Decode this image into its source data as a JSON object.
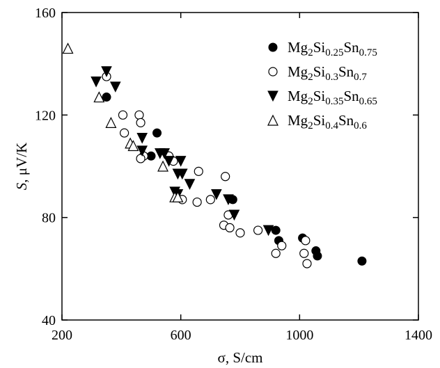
{
  "chart_data": {
    "type": "scatter",
    "xlabel": "σ, S/cm",
    "ylabel_italic": "S",
    "ylabel_rest": ", μV/K",
    "xlim": [
      200,
      1400
    ],
    "ylim": [
      40,
      160
    ],
    "xticks": [
      200,
      600,
      1000,
      1400
    ],
    "yticks": [
      40,
      80,
      120,
      160
    ],
    "xtick_labels": [
      "200",
      "600",
      "1000",
      "1400"
    ],
    "ytick_labels": [
      "40",
      "80",
      "120",
      "160"
    ],
    "grid": false,
    "legend_position": "top-right",
    "series": [
      {
        "name": "Mg2Si0.25Sn0.75",
        "legend_parts": [
          "Mg",
          "2",
          "Si",
          "0.25",
          "Sn",
          "0.75"
        ],
        "marker": "filled-circle",
        "color": "#000000",
        "points": [
          [
            350,
            127
          ],
          [
            520,
            113
          ],
          [
            500,
            104
          ],
          [
            775,
            87
          ],
          [
            920,
            75
          ],
          [
            930,
            71
          ],
          [
            1010,
            72
          ],
          [
            1055,
            67
          ],
          [
            1060,
            65
          ],
          [
            1210,
            63
          ]
        ]
      },
      {
        "name": "Mg2Si0.3Sn0.7",
        "legend_parts": [
          "Mg",
          "2",
          "Si",
          "0.3",
          "Sn",
          "0.7"
        ],
        "marker": "open-circle",
        "color": "#000000",
        "points": [
          [
            350,
            135
          ],
          [
            405,
            120
          ],
          [
            460,
            120
          ],
          [
            465,
            117
          ],
          [
            410,
            113
          ],
          [
            475,
            104
          ],
          [
            465,
            103
          ],
          [
            560,
            104
          ],
          [
            575,
            102
          ],
          [
            660,
            98
          ],
          [
            750,
            96
          ],
          [
            700,
            87
          ],
          [
            605,
            87
          ],
          [
            655,
            86
          ],
          [
            760,
            81
          ],
          [
            745,
            77
          ],
          [
            765,
            76
          ],
          [
            800,
            74
          ],
          [
            860,
            75
          ],
          [
            940,
            69
          ],
          [
            920,
            66
          ],
          [
            1020,
            71
          ],
          [
            1015,
            66
          ],
          [
            1025,
            62
          ]
        ]
      },
      {
        "name": "Mg2Si0.35Sn0.65",
        "legend_parts": [
          "Mg",
          "2",
          "Si",
          "0.35",
          "Sn",
          "0.65"
        ],
        "marker": "filled-triangle-down",
        "color": "#000000",
        "points": [
          [
            350,
            137
          ],
          [
            315,
            133
          ],
          [
            380,
            131
          ],
          [
            470,
            111
          ],
          [
            470,
            106
          ],
          [
            530,
            105
          ],
          [
            545,
            105
          ],
          [
            560,
            102
          ],
          [
            600,
            102
          ],
          [
            590,
            97
          ],
          [
            605,
            97
          ],
          [
            630,
            93
          ],
          [
            580,
            90
          ],
          [
            590,
            89
          ],
          [
            720,
            89
          ],
          [
            760,
            87
          ],
          [
            780,
            81
          ],
          [
            895,
            75
          ]
        ]
      },
      {
        "name": "Mg2Si0.4Sn0.6",
        "legend_parts": [
          "Mg",
          "2",
          "Si",
          "0.4",
          "Sn",
          "0.6"
        ],
        "marker": "open-triangle-up",
        "color": "#000000",
        "points": [
          [
            220,
            146
          ],
          [
            325,
            127
          ],
          [
            365,
            117
          ],
          [
            430,
            109
          ],
          [
            440,
            108
          ],
          [
            540,
            100
          ],
          [
            580,
            88
          ],
          [
            590,
            88
          ]
        ]
      }
    ]
  }
}
